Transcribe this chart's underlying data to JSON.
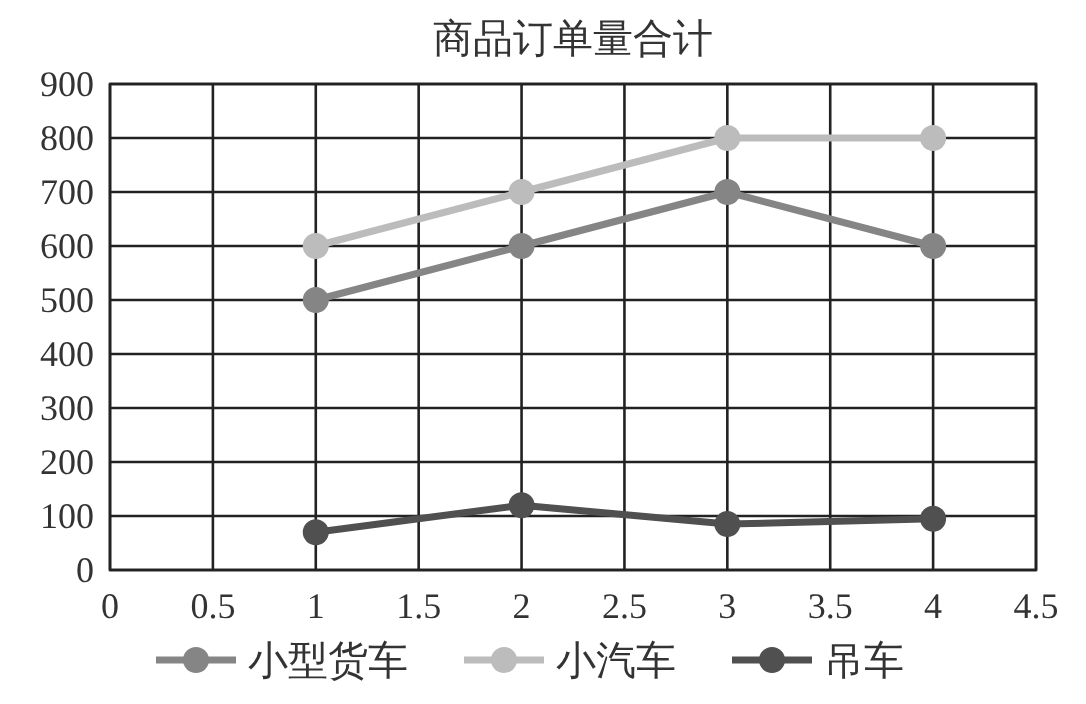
{
  "chart_data": {
    "type": "line",
    "title": "商品订单量合计",
    "x": [
      1,
      2,
      3,
      4
    ],
    "series": [
      {
        "name": "小型货车",
        "color": "#858585",
        "values": [
          500,
          600,
          700,
          600
        ]
      },
      {
        "name": "小汽车",
        "color": "#bcbcbc",
        "values": [
          600,
          700,
          800,
          800
        ]
      },
      {
        "name": "吊车",
        "color": "#505050",
        "values": [
          70,
          120,
          85,
          95
        ]
      }
    ],
    "xlim": [
      0,
      4.5
    ],
    "xticks": [
      0,
      0.5,
      1,
      1.5,
      2,
      2.5,
      3,
      3.5,
      4,
      4.5
    ],
    "ylim": [
      0,
      900
    ],
    "yticks": [
      0,
      100,
      200,
      300,
      400,
      500,
      600,
      700,
      800,
      900
    ],
    "grid": true,
    "legend": "bottom",
    "marker": "circle",
    "line_style": "solid"
  }
}
